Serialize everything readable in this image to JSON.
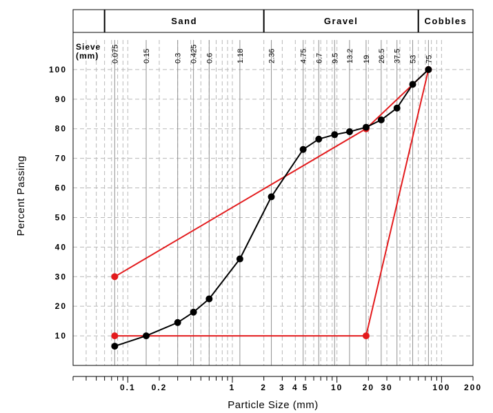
{
  "chart_data": {
    "type": "line",
    "xlabel": "Particle Size (mm)",
    "ylabel": "Percent Passing",
    "x_scale": "log",
    "xlim": [
      0.03,
      200
    ],
    "ylim": [
      0,
      110
    ],
    "grid": true,
    "soil_bands": [
      {
        "label": "Sand",
        "from": 0.06,
        "to": 2
      },
      {
        "label": "Gravel",
        "from": 2,
        "to": 60
      },
      {
        "label": "Cobbles",
        "from": 60,
        "to": 200
      }
    ],
    "sieve_header": {
      "line1": "Sieve",
      "line2": "(mm)"
    },
    "sieve_sizes": [
      {
        "value": 0.075,
        "label": "0.075"
      },
      {
        "value": 0.15,
        "label": "0.15"
      },
      {
        "value": 0.3,
        "label": "0.3"
      },
      {
        "value": 0.425,
        "label": "0.425"
      },
      {
        "value": 0.6,
        "label": "0.6"
      },
      {
        "value": 1.18,
        "label": "1.18"
      },
      {
        "value": 2.36,
        "label": "2.36"
      },
      {
        "value": 4.75,
        "label": "4.75"
      },
      {
        "value": 6.7,
        "label": "6.7"
      },
      {
        "value": 9.5,
        "label": "9.5"
      },
      {
        "value": 13.2,
        "label": "13.2"
      },
      {
        "value": 19,
        "label": "19"
      },
      {
        "value": 26.5,
        "label": "26.5"
      },
      {
        "value": 37.5,
        "label": "37.5"
      },
      {
        "value": 53,
        "label": "53"
      },
      {
        "value": 75,
        "label": "75"
      }
    ],
    "y_ticks": [
      {
        "value": 10,
        "label": "10"
      },
      {
        "value": 20,
        "label": "20"
      },
      {
        "value": 30,
        "label": "30"
      },
      {
        "value": 40,
        "label": "40"
      },
      {
        "value": 50,
        "label": "50"
      },
      {
        "value": 60,
        "label": "60"
      },
      {
        "value": 70,
        "label": "70"
      },
      {
        "value": 80,
        "label": "80"
      },
      {
        "value": 90,
        "label": "90"
      },
      {
        "value": 100,
        "label": "100"
      }
    ],
    "x_ticks": [
      {
        "value": 0.1,
        "label": "0.1"
      },
      {
        "value": 0.2,
        "label": "0.2"
      },
      {
        "value": 1,
        "label": "1"
      },
      {
        "value": 2,
        "label": "2"
      },
      {
        "value": 3,
        "label": "3"
      },
      {
        "value": 4,
        "label": "4"
      },
      {
        "value": 5,
        "label": "5"
      },
      {
        "value": 10,
        "label": "10"
      },
      {
        "value": 20,
        "label": "20"
      },
      {
        "value": 30,
        "label": "30"
      },
      {
        "value": 100,
        "label": "100"
      },
      {
        "value": 200,
        "label": "200"
      }
    ],
    "series": [
      {
        "color": "#000000",
        "points": [
          {
            "x": 0.075,
            "y": 6.5
          },
          {
            "x": 0.15,
            "y": 10
          },
          {
            "x": 0.3,
            "y": 14.5
          },
          {
            "x": 0.425,
            "y": 18
          },
          {
            "x": 0.6,
            "y": 22.5
          },
          {
            "x": 1.18,
            "y": 36
          },
          {
            "x": 2.36,
            "y": 57
          },
          {
            "x": 4.75,
            "y": 73
          },
          {
            "x": 6.7,
            "y": 76.5
          },
          {
            "x": 9.5,
            "y": 78
          },
          {
            "x": 13.2,
            "y": 79
          },
          {
            "x": 19,
            "y": 80.5
          },
          {
            "x": 26.5,
            "y": 83
          },
          {
            "x": 37.5,
            "y": 87
          },
          {
            "x": 53,
            "y": 95
          },
          {
            "x": 75,
            "y": 100
          }
        ]
      },
      {
        "color": "#e31a1c",
        "points": [
          {
            "x": 0.075,
            "y": 30
          },
          {
            "x": 19,
            "y": 80
          },
          {
            "x": 75,
            "y": 100
          },
          {
            "x": 19,
            "y": 10
          },
          {
            "x": 0.075,
            "y": 10
          }
        ]
      }
    ]
  }
}
